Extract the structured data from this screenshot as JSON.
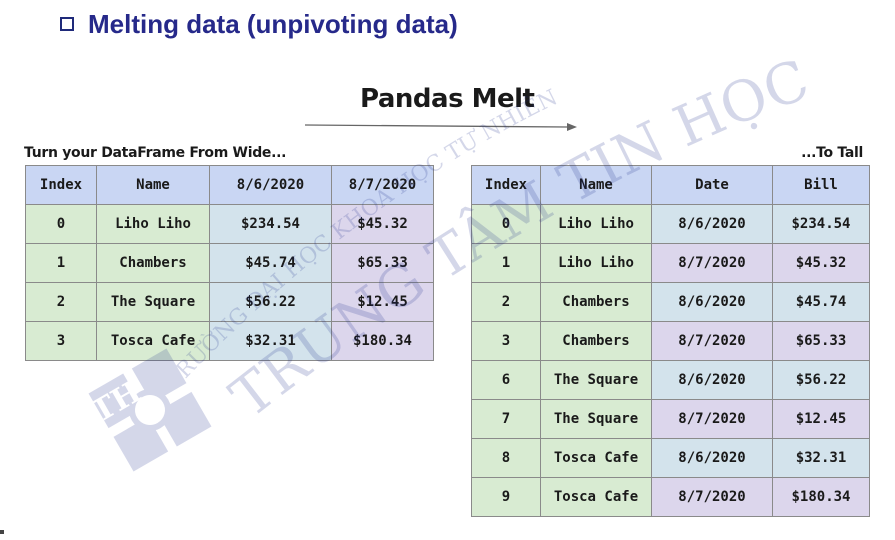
{
  "heading": "Melting data (unpivoting data)",
  "title": "Pandas Melt",
  "caption_left": "Turn your DataFrame From Wide...",
  "caption_right": "...To Tall",
  "wide_table": {
    "headers": [
      "Index",
      "Name",
      "8/6/2020",
      "8/7/2020"
    ],
    "rows": [
      [
        "0",
        "Liho Liho",
        "$234.54",
        "$45.32"
      ],
      [
        "1",
        "Chambers",
        "$45.74",
        "$65.33"
      ],
      [
        "2",
        "The Square",
        "$56.22",
        "$12.45"
      ],
      [
        "3",
        "Tosca Cafe",
        "$32.31",
        "$180.34"
      ]
    ]
  },
  "tall_table": {
    "headers": [
      "Index",
      "Name",
      "Date",
      "Bill"
    ],
    "rows": [
      [
        "0",
        "Liho Liho",
        "8/6/2020",
        "$234.54"
      ],
      [
        "1",
        "Liho Liho",
        "8/7/2020",
        "$45.32"
      ],
      [
        "2",
        "Chambers",
        "8/6/2020",
        "$45.74"
      ],
      [
        "3",
        "Chambers",
        "8/7/2020",
        "$65.33"
      ],
      [
        "6",
        "The Square",
        "8/6/2020",
        "$56.22"
      ],
      [
        "7",
        "The Square",
        "8/7/2020",
        "$12.45"
      ],
      [
        "8",
        "Tosca Cafe",
        "8/6/2020",
        "$32.31"
      ],
      [
        "9",
        "Tosca Cafe",
        "8/7/2020",
        "$180.34"
      ]
    ]
  },
  "watermark": {
    "line1": "TRƯỜNG ĐẠI HỌC KHOA HỌC TỰ NHIÊN",
    "line2": "TRUNG TÂM TIN HỌC",
    "logo": "TH"
  },
  "colors": {
    "heading": "#26298a",
    "header_cell": "#c9d6f3",
    "green_cell": "#d8ebd2",
    "blue_cell": "#d3e3ec",
    "purple_cell": "#dcd6ec"
  }
}
